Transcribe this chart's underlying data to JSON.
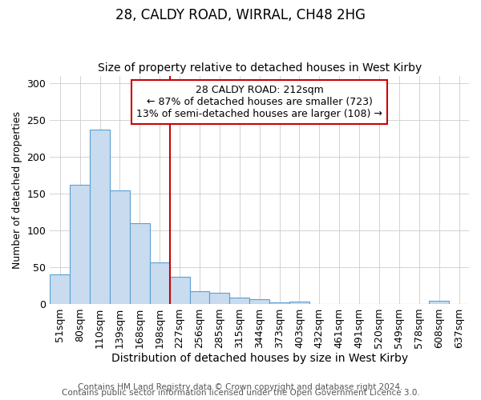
{
  "title1": "28, CALDY ROAD, WIRRAL, CH48 2HG",
  "title2": "Size of property relative to detached houses in West Kirby",
  "xlabel": "Distribution of detached houses by size in West Kirby",
  "ylabel": "Number of detached properties",
  "categories": [
    "51sqm",
    "80sqm",
    "110sqm",
    "139sqm",
    "168sqm",
    "198sqm",
    "227sqm",
    "256sqm",
    "285sqm",
    "315sqm",
    "344sqm",
    "373sqm",
    "403sqm",
    "432sqm",
    "461sqm",
    "491sqm",
    "520sqm",
    "549sqm",
    "578sqm",
    "608sqm",
    "637sqm"
  ],
  "values": [
    40,
    162,
    237,
    154,
    110,
    56,
    37,
    17,
    15,
    9,
    6,
    2,
    3,
    0,
    0,
    0,
    0,
    0,
    0,
    4,
    0
  ],
  "bar_color": "#c9dcef",
  "bar_edge_color": "#5a9fd4",
  "red_line_x": 6.0,
  "annotation_title": "28 CALDY ROAD: 212sqm",
  "annotation_line1": "← 87% of detached houses are smaller (723)",
  "annotation_line2": "13% of semi-detached houses are larger (108) →",
  "annotation_box_color": "#ffffff",
  "annotation_border_color": "#cc0000",
  "red_line_color": "#cc0000",
  "ylim": [
    0,
    310
  ],
  "yticks": [
    0,
    50,
    100,
    150,
    200,
    250,
    300
  ],
  "footer1": "Contains HM Land Registry data © Crown copyright and database right 2024.",
  "footer2": "Contains public sector information licensed under the Open Government Licence 3.0.",
  "bg_color": "#ffffff",
  "plot_bg_color": "#ffffff",
  "title1_fontsize": 12,
  "title2_fontsize": 10,
  "xlabel_fontsize": 10,
  "ylabel_fontsize": 9,
  "tick_fontsize": 9,
  "annotation_fontsize": 9,
  "footer_fontsize": 7.5
}
